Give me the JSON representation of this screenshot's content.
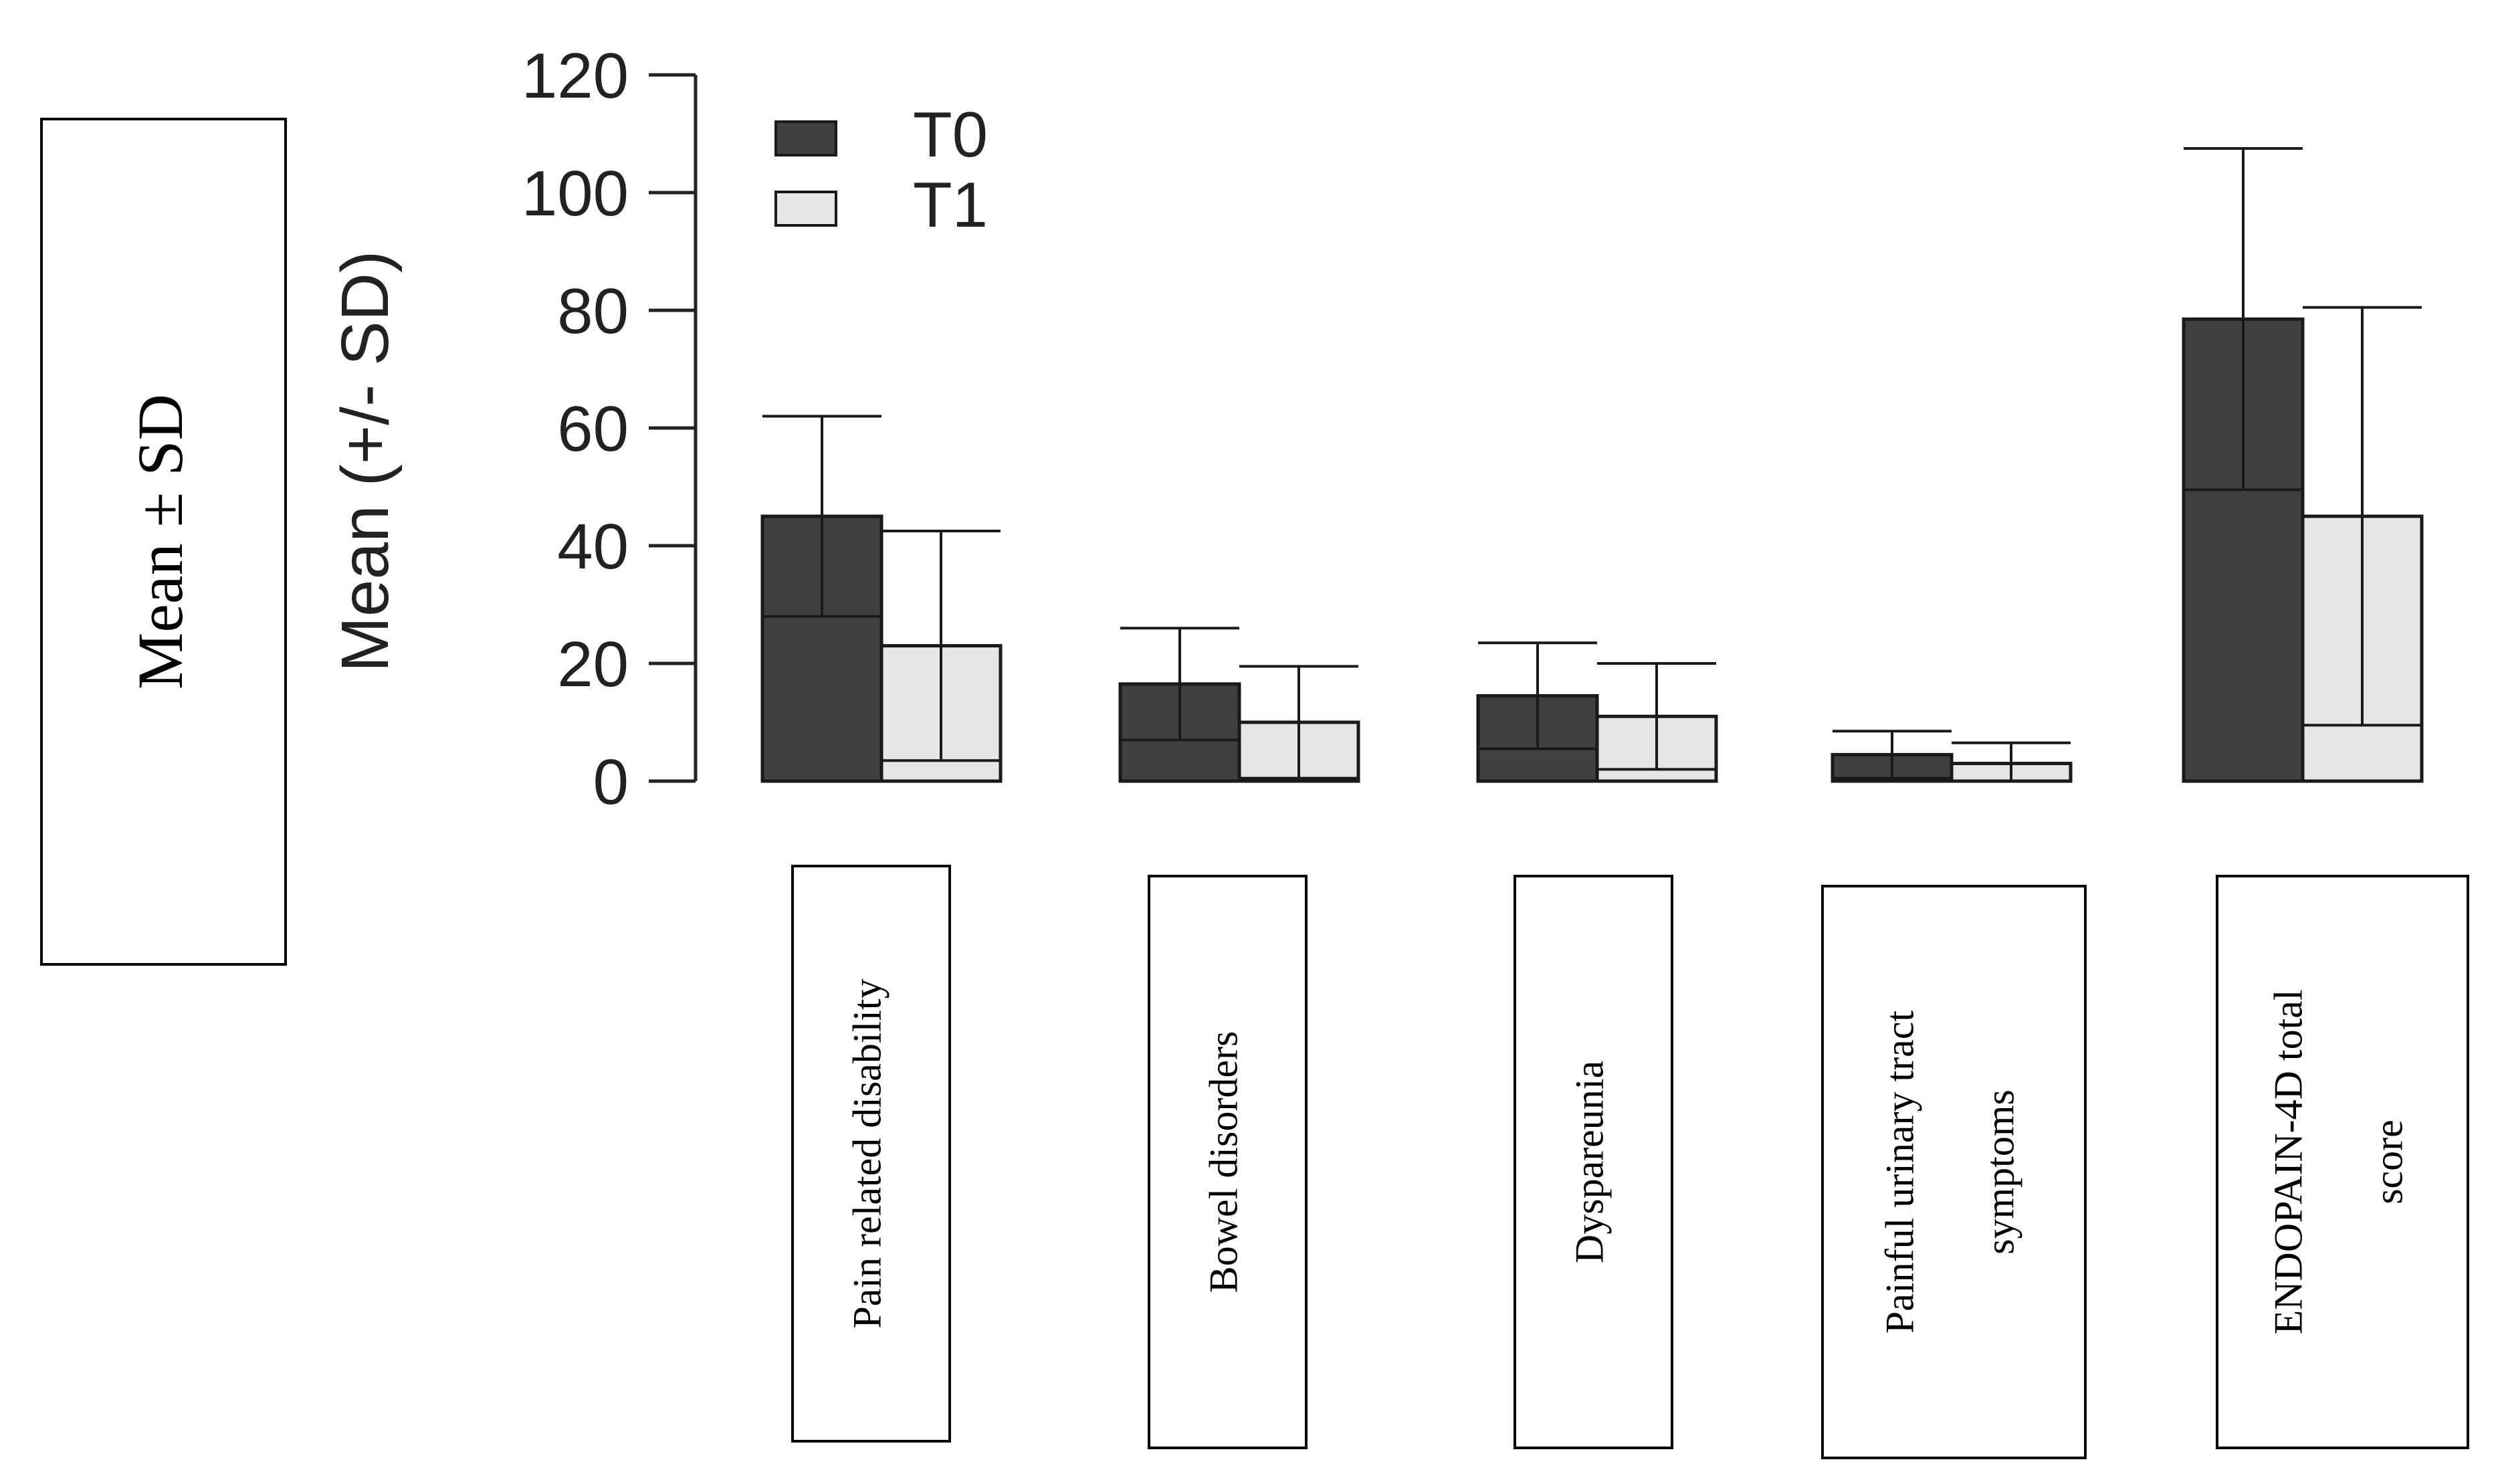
{
  "chart_data": {
    "type": "bar",
    "ylabel": "Mean (+/- SD)",
    "side_label": "Mean ± SD",
    "ylim": [
      0,
      120
    ],
    "yticks": [
      0,
      20,
      40,
      60,
      80,
      100,
      120
    ],
    "legend": {
      "placement": "top-left"
    },
    "categories": [
      "Pain related disability",
      "Bowel disorders",
      "Dyspareunia",
      "Painful urinary tract symptoms",
      "ENDOPAIN-4D total score"
    ],
    "category_lines": [
      [
        "Pain related disability"
      ],
      [
        "Bowel disorders"
      ],
      [
        "Dyspareunia"
      ],
      [
        "Painful urinary tract",
        "symptoms"
      ],
      [
        "ENDOPAIN-4D total",
        "score"
      ]
    ],
    "series": [
      {
        "name": "T0",
        "color": "#404040",
        "values": [
          45,
          16.5,
          14.5,
          4.5,
          78.5
        ],
        "sd": [
          17,
          9.5,
          9,
          4,
          29
        ]
      },
      {
        "name": "T1",
        "color": "#e6e6e6",
        "values": [
          23,
          10,
          11,
          3,
          45
        ],
        "sd": [
          19.5,
          9.5,
          9,
          3.5,
          35.5
        ]
      }
    ]
  }
}
